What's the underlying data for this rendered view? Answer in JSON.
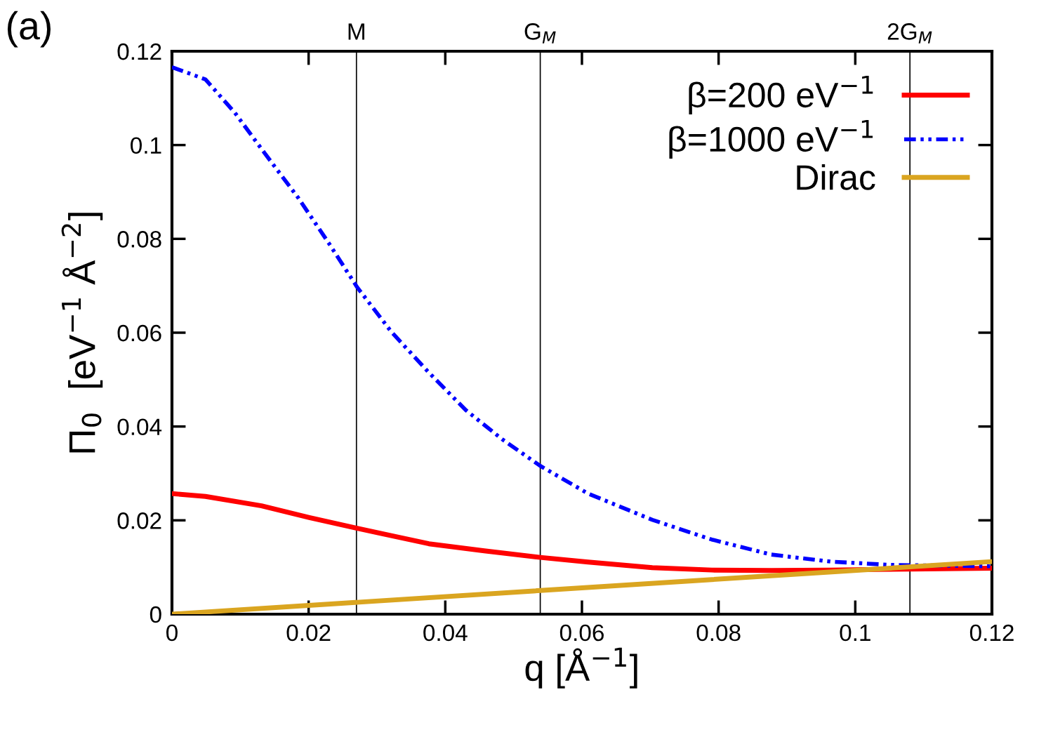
{
  "chart_data": {
    "type": "line",
    "xlabel": "q [Å$^{−1}$]",
    "ylabel": "Π$_{0}$  [eV$^{−1}$ Å$^{−2}$]",
    "xlim": [
      0,
      0.12
    ],
    "ylim": [
      0,
      0.12
    ],
    "xticks": [
      0,
      0.02,
      0.04,
      0.06,
      0.08,
      0.1,
      0.12
    ],
    "yticks": [
      0,
      0.02,
      0.04,
      0.06,
      0.08,
      0.1,
      0.12
    ],
    "grid": false,
    "legend": "top right",
    "series": [
      {
        "name": "β=200 eV$^{−1}$",
        "color": "#ff0000",
        "line_style": "solid",
        "x": [
          0,
          0.0049,
          0.0131,
          0.0201,
          0.0271,
          0.0376,
          0.0457,
          0.0539,
          0.0609,
          0.0703,
          0.079,
          0.0877,
          0.0964,
          0.108,
          0.12
        ],
        "values": [
          0.0257,
          0.0251,
          0.0231,
          0.0206,
          0.0183,
          0.015,
          0.0135,
          0.0121,
          0.0111,
          0.0099,
          0.0094,
          0.0093,
          0.0094,
          0.0096,
          0.0098
        ]
      },
      {
        "name": "β=1000 eV$^{−1}$",
        "color": "#0000ff",
        "line_style": "dashdotdot",
        "x": [
          0,
          0.0049,
          0.0092,
          0.0136,
          0.0185,
          0.0229,
          0.0271,
          0.0321,
          0.0376,
          0.043,
          0.0484,
          0.0539,
          0.0609,
          0.0703,
          0.079,
          0.0877,
          0.0964,
          0.1051,
          0.12
        ],
        "values": [
          0.1166,
          0.114,
          0.1069,
          0.0982,
          0.0887,
          0.0792,
          0.0697,
          0.0602,
          0.0515,
          0.0435,
          0.0372,
          0.0316,
          0.0257,
          0.0201,
          0.0159,
          0.0127,
          0.0112,
          0.0105,
          0.0102
        ]
      },
      {
        "name": "Dirac",
        "color": "#daa520",
        "line_style": "solid",
        "x": [
          0,
          0.12
        ],
        "values": [
          0,
          0.0112
        ]
      }
    ],
    "ref_lines": [
      {
        "axis": "x",
        "value": 0.027,
        "label": "M",
        "color": "#000000"
      },
      {
        "axis": "x",
        "value": 0.0539,
        "label": "G$_{M}$",
        "color": "#000000"
      },
      {
        "axis": "x",
        "value": 0.108,
        "label": "2G$_{M}$",
        "color": "#000000"
      }
    ],
    "annotations": [
      "(a)"
    ]
  }
}
